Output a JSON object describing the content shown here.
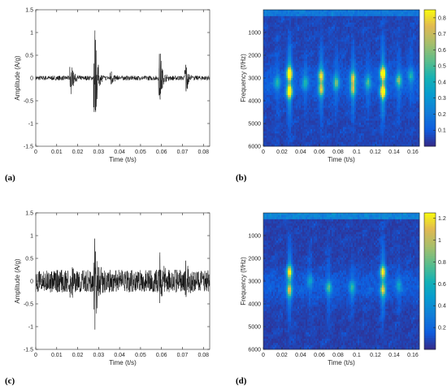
{
  "chart_data": [
    {
      "panel": "(a)",
      "type": "line",
      "xlabel": "Time (t/s)",
      "ylabel": "Amplitude (A/g)",
      "xlim": [
        0,
        0.083
      ],
      "ylim": [
        -1.5,
        1.5
      ],
      "xticks": [
        "0",
        "0.01",
        "0.02",
        "0.03",
        "0.04",
        "0.05",
        "0.06",
        "0.07",
        "0.08"
      ],
      "yticks": [
        "-1.5",
        "-1",
        "-0.5",
        "0",
        "0.5",
        "1",
        "1.5"
      ],
      "noise_amplitude": 0.05,
      "impulses": [
        {
          "t": 0.0168,
          "peak": 0.38
        },
        {
          "t": 0.0282,
          "peak": 1.25
        },
        {
          "t": 0.036,
          "peak": 0.18
        },
        {
          "t": 0.0592,
          "peak": 0.68
        },
        {
          "t": 0.0716,
          "peak": 0.42
        }
      ],
      "color": "#000000"
    },
    {
      "panel": "(b)",
      "type": "heatmap",
      "xlabel": "Time (t/s)",
      "ylabel": "Frequency (f/Hz)",
      "xlim": [
        0,
        0.167
      ],
      "ylim": [
        0,
        6000
      ],
      "y_reversed": true,
      "xticks": [
        "0",
        "0.02",
        "0.04",
        "0.06",
        "0.08",
        "0.1",
        "0.12",
        "0.14",
        "0.16"
      ],
      "yticks": [
        "1000",
        "2000",
        "3000",
        "4000",
        "5000",
        "6000"
      ],
      "colorbar_ticks": [
        "0.1",
        "0.2",
        "0.3",
        "0.4",
        "0.5",
        "0.6",
        "0.7",
        "0.8"
      ],
      "colorbar_range": [
        0,
        0.85
      ],
      "hotspots": [
        {
          "t": 0.028,
          "f": 2800,
          "v": 0.85
        },
        {
          "t": 0.028,
          "f": 3600,
          "v": 0.8
        },
        {
          "t": 0.128,
          "f": 2800,
          "v": 0.85
        },
        {
          "t": 0.128,
          "f": 3600,
          "v": 0.8
        },
        {
          "t": 0.062,
          "f": 2900,
          "v": 0.55
        },
        {
          "t": 0.062,
          "f": 3500,
          "v": 0.5
        },
        {
          "t": 0.078,
          "f": 3200,
          "v": 0.42
        },
        {
          "t": 0.096,
          "f": 3000,
          "v": 0.5
        },
        {
          "t": 0.096,
          "f": 3500,
          "v": 0.45
        },
        {
          "t": 0.112,
          "f": 3200,
          "v": 0.35
        },
        {
          "t": 0.145,
          "f": 3100,
          "v": 0.45
        },
        {
          "t": 0.015,
          "f": 3200,
          "v": 0.3
        },
        {
          "t": 0.045,
          "f": 3200,
          "v": 0.3
        },
        {
          "t": 0.158,
          "f": 2900,
          "v": 0.3
        }
      ]
    },
    {
      "panel": "(c)",
      "type": "line",
      "xlabel": "Time (t/s)",
      "ylabel": "Amplitude (A/g)",
      "xlim": [
        0,
        0.083
      ],
      "ylim": [
        -1.5,
        1.5
      ],
      "xticks": [
        "0",
        "0.01",
        "0.02",
        "0.03",
        "0.04",
        "0.05",
        "0.06",
        "0.07",
        "0.08"
      ],
      "yticks": [
        "-1.5",
        "-1",
        "-0.5",
        "0",
        "0.5",
        "1",
        "1.5"
      ],
      "noise_amplitude": 0.25,
      "impulses": [
        {
          "t": 0.0168,
          "peak": 0.38
        },
        {
          "t": 0.0282,
          "peak": 1.15
        },
        {
          "t": 0.0592,
          "peak": 0.68
        },
        {
          "t": 0.0716,
          "peak": 0.42
        }
      ],
      "color": "#000000"
    },
    {
      "panel": "(d)",
      "type": "heatmap",
      "xlabel": "Time (t/s)",
      "ylabel": "Frequency (f/Hz)",
      "xlim": [
        0,
        0.167
      ],
      "ylim": [
        0,
        6000
      ],
      "y_reversed": true,
      "xticks": [
        "0",
        "0.02",
        "0.04",
        "0.06",
        "0.08",
        "0.1",
        "0.12",
        "0.14",
        "0.16"
      ],
      "yticks": [
        "1000",
        "2000",
        "3000",
        "4000",
        "5000",
        "6000"
      ],
      "colorbar_ticks": [
        "0.2",
        "0.4",
        "0.6",
        "0.8",
        "1",
        "1.2"
      ],
      "colorbar_range": [
        0,
        1.25
      ],
      "hotspots": [
        {
          "t": 0.028,
          "f": 2600,
          "v": 0.95
        },
        {
          "t": 0.028,
          "f": 3400,
          "v": 0.75
        },
        {
          "t": 0.128,
          "f": 2600,
          "v": 0.95
        },
        {
          "t": 0.128,
          "f": 3400,
          "v": 0.75
        },
        {
          "t": 0.07,
          "f": 3300,
          "v": 0.55
        },
        {
          "t": 0.095,
          "f": 3300,
          "v": 0.45
        },
        {
          "t": 0.05,
          "f": 3000,
          "v": 0.35
        },
        {
          "t": 0.145,
          "f": 3200,
          "v": 0.35
        }
      ]
    }
  ],
  "panel_labels": [
    "(a)",
    "(b)",
    "(c)",
    "(d)"
  ]
}
